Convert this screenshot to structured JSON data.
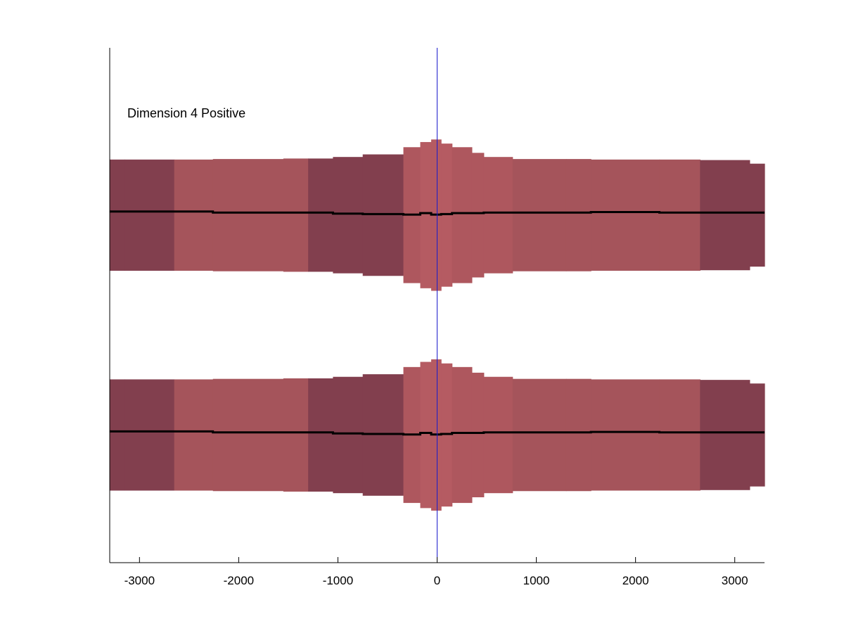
{
  "chart_data": {
    "type": "area",
    "annotation": "Dimension 4 Positive",
    "xlim": [
      -3300,
      3300
    ],
    "ylim": [
      0,
      1
    ],
    "grid": false,
    "xticks": [
      -3000,
      -2000,
      -1000,
      0,
      1000,
      2000,
      3000
    ],
    "xtick_labels": [
      "-3000",
      "-2000",
      "-1000",
      "0",
      "1000",
      "2000",
      "3000"
    ],
    "vline_x": 0,
    "colors": {
      "light": "#a5545b",
      "mid": "#ae575e",
      "center": "#b55b62",
      "dark": "#823f4e",
      "line": "#000000",
      "vline": "#1a1acc"
    },
    "segments": [
      {
        "x0": -3300,
        "x1": -3150,
        "half": 0.108,
        "mid": 0.007,
        "shade": "dark"
      },
      {
        "x0": -3150,
        "x1": -2650,
        "half": 0.108,
        "mid": 0.007,
        "shade": "dark"
      },
      {
        "x0": -2650,
        "x1": -2260,
        "half": 0.108,
        "mid": 0.007,
        "shade": "light"
      },
      {
        "x0": -2260,
        "x1": -1550,
        "half": 0.109,
        "mid": 0.005,
        "shade": "light"
      },
      {
        "x0": -1550,
        "x1": -1300,
        "half": 0.11,
        "mid": 0.005,
        "shade": "light"
      },
      {
        "x0": -1300,
        "x1": -1050,
        "half": 0.11,
        "mid": 0.005,
        "shade": "dark"
      },
      {
        "x0": -1050,
        "x1": -750,
        "half": 0.113,
        "mid": 0.003,
        "shade": "dark"
      },
      {
        "x0": -750,
        "x1": -340,
        "half": 0.118,
        "mid": 0.002,
        "shade": "dark"
      },
      {
        "x0": -340,
        "x1": -170,
        "half": 0.132,
        "mid": 0.001,
        "shade": "mid"
      },
      {
        "x0": -170,
        "x1": -60,
        "half": 0.142,
        "mid": 0.004,
        "shade": "center"
      },
      {
        "x0": -60,
        "x1": 40,
        "half": 0.147,
        "mid": 0.001,
        "shade": "center"
      },
      {
        "x0": 40,
        "x1": 150,
        "half": 0.139,
        "mid": 0.002,
        "shade": "center"
      },
      {
        "x0": 150,
        "x1": 350,
        "half": 0.132,
        "mid": 0.004,
        "shade": "mid"
      },
      {
        "x0": 350,
        "x1": 470,
        "half": 0.121,
        "mid": 0.004,
        "shade": "mid"
      },
      {
        "x0": 470,
        "x1": 760,
        "half": 0.113,
        "mid": 0.005,
        "shade": "mid"
      },
      {
        "x0": 760,
        "x1": 1300,
        "half": 0.109,
        "mid": 0.005,
        "shade": "light"
      },
      {
        "x0": 1300,
        "x1": 1550,
        "half": 0.109,
        "mid": 0.005,
        "shade": "light"
      },
      {
        "x0": 1550,
        "x1": 2240,
        "half": 0.108,
        "mid": 0.006,
        "shade": "light"
      },
      {
        "x0": 2240,
        "x1": 2650,
        "half": 0.108,
        "mid": 0.005,
        "shade": "light"
      },
      {
        "x0": 2650,
        "x1": 3150,
        "half": 0.107,
        "mid": 0.005,
        "shade": "dark"
      },
      {
        "x0": 3150,
        "x1": 3300,
        "half": 0.1,
        "mid": 0.005,
        "shade": "dark"
      }
    ],
    "bands": [
      {
        "center": 0.675
      },
      {
        "center": 0.248
      }
    ]
  }
}
